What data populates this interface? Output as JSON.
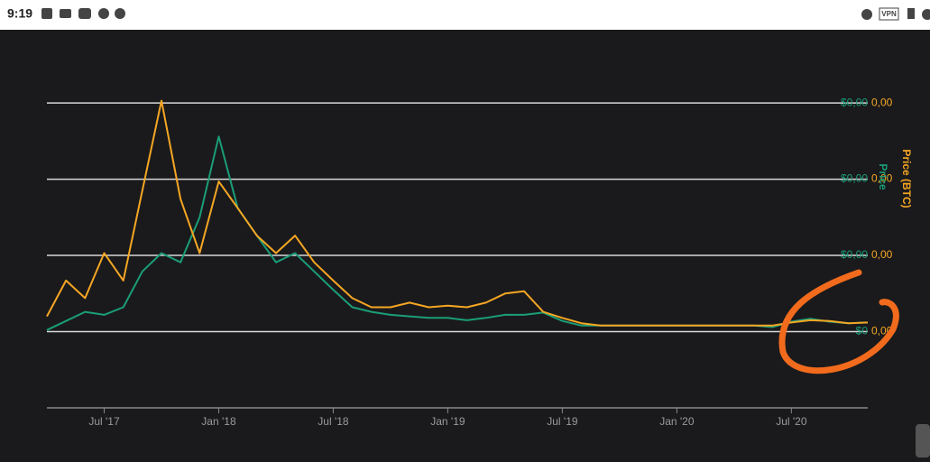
{
  "status_bar": {
    "time": "9:19",
    "vpn": "VPN"
  },
  "chart_data": {
    "type": "line",
    "x": [
      "2017-04",
      "2017-05",
      "2017-06",
      "2017-07",
      "2017-08",
      "2017-09",
      "2017-10",
      "2017-11",
      "2017-12",
      "2018-01",
      "2018-02",
      "2018-03",
      "2018-04",
      "2018-05",
      "2018-06",
      "2018-07",
      "2018-08",
      "2018-09",
      "2018-10",
      "2018-11",
      "2018-12",
      "2019-01",
      "2019-02",
      "2019-03",
      "2019-04",
      "2019-05",
      "2019-06",
      "2019-07",
      "2019-08",
      "2019-09",
      "2019-10",
      "2019-11",
      "2019-12",
      "2020-01",
      "2020-02",
      "2020-03",
      "2020-04",
      "2020-05",
      "2020-06",
      "2020-07",
      "2020-08",
      "2020-09",
      "2020-10",
      "2020-11"
    ],
    "xlim": [
      "2017-04",
      "2020-11"
    ],
    "xticks": [
      {
        "value": "2017-07",
        "label": "Jul '17"
      },
      {
        "value": "2018-01",
        "label": "Jan '18"
      },
      {
        "value": "2018-07",
        "label": "Jul '18"
      },
      {
        "value": "2019-01",
        "label": "Jan '19"
      },
      {
        "value": "2019-07",
        "label": "Jul '19"
      },
      {
        "value": "2020-01",
        "label": "Jan '20"
      },
      {
        "value": "2020-07",
        "label": "Jul '20"
      }
    ],
    "ylim": [
      -0.001,
      0.00396
    ],
    "yticks": [
      {
        "value": 0,
        "label": "$0"
      },
      {
        "value": 0.001,
        "label": "$0,00"
      },
      {
        "value": 0.002,
        "label": "$0,00"
      },
      {
        "value": 0.003,
        "label": "$0,00"
      }
    ],
    "y2lim": [
      -0.001,
      0.00396
    ],
    "y2ticks": [
      {
        "value": 0,
        "label": "0,00"
      },
      {
        "value": 0.001,
        "label": "0,00"
      },
      {
        "value": 0.002,
        "label": "0,00"
      },
      {
        "value": 0.003,
        "label": "0,00"
      }
    ],
    "grid": true,
    "series": [
      {
        "name": "Price",
        "color": "#1a9e77",
        "values": [
          2e-05,
          0.00014,
          0.00026,
          0.00022,
          0.00032,
          0.00079,
          0.00103,
          0.00091,
          0.0015,
          0.00256,
          0.00162,
          0.00126,
          0.00091,
          0.00103,
          0.00079,
          0.00055,
          0.00032,
          0.00026,
          0.00022,
          0.0002,
          0.00018,
          0.00018,
          0.00015,
          0.00018,
          0.00022,
          0.00022,
          0.00025,
          0.00014,
          8e-05,
          8e-05,
          8e-05,
          8e-05,
          8e-05,
          8e-05,
          8e-05,
          8e-05,
          8e-05,
          8e-05,
          6e-05,
          0.00013,
          0.00017,
          0.00013,
          0.00011,
          0.00012
        ]
      },
      {
        "name": "Price (BTC)",
        "color": "#f5a623",
        "axis": "y2",
        "values": [
          0.0002,
          0.00067,
          0.00044,
          0.00103,
          0.00067,
          0.00185,
          0.00303,
          0.00174,
          0.00103,
          0.00197,
          0.00162,
          0.00126,
          0.00103,
          0.00126,
          0.00091,
          0.00067,
          0.00044,
          0.00032,
          0.00032,
          0.00038,
          0.00032,
          0.00034,
          0.00032,
          0.00038,
          0.0005,
          0.00053,
          0.00026,
          0.00018,
          0.00011,
          8e-05,
          8e-05,
          8e-05,
          8e-05,
          8e-05,
          8e-05,
          8e-05,
          8e-05,
          8e-05,
          8e-05,
          0.00012,
          0.00015,
          0.00014,
          0.00011,
          0.00012
        ]
      }
    ]
  }
}
